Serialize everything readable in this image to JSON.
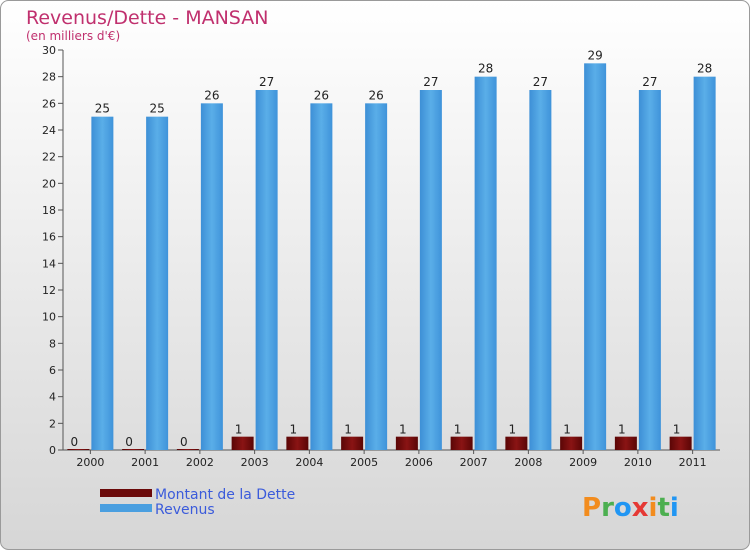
{
  "chart_data": {
    "type": "bar",
    "title": "Revenus/Dette - MANSAN",
    "subtitle": "(en milliers d'€)",
    "categories": [
      "2000",
      "2001",
      "2002",
      "2003",
      "2004",
      "2005",
      "2006",
      "2007",
      "2008",
      "2009",
      "2010",
      "2011"
    ],
    "series": [
      {
        "name": "Montant de la Dette",
        "color": "#6b0a0a",
        "values": [
          0,
          0,
          0,
          1,
          1,
          1,
          1,
          1,
          1,
          1,
          1,
          1
        ]
      },
      {
        "name": "Revenus",
        "color": "#4a9fe0",
        "values": [
          25,
          25,
          26,
          27,
          26,
          26,
          27,
          28,
          27,
          29,
          27,
          28
        ]
      }
    ],
    "ylim": [
      0,
      30
    ],
    "yticks": [
      0,
      2,
      4,
      6,
      8,
      10,
      12,
      14,
      16,
      18,
      20,
      22,
      24,
      26,
      28,
      30
    ],
    "grid": false,
    "legend_position": "bottom-left",
    "colors": {
      "title": "#c0306e",
      "legend_text": "#3b5bdb",
      "background_top": "#ffffff",
      "background_bottom": "#d9d9d9"
    }
  },
  "logo": {
    "text": "Proxiti"
  }
}
